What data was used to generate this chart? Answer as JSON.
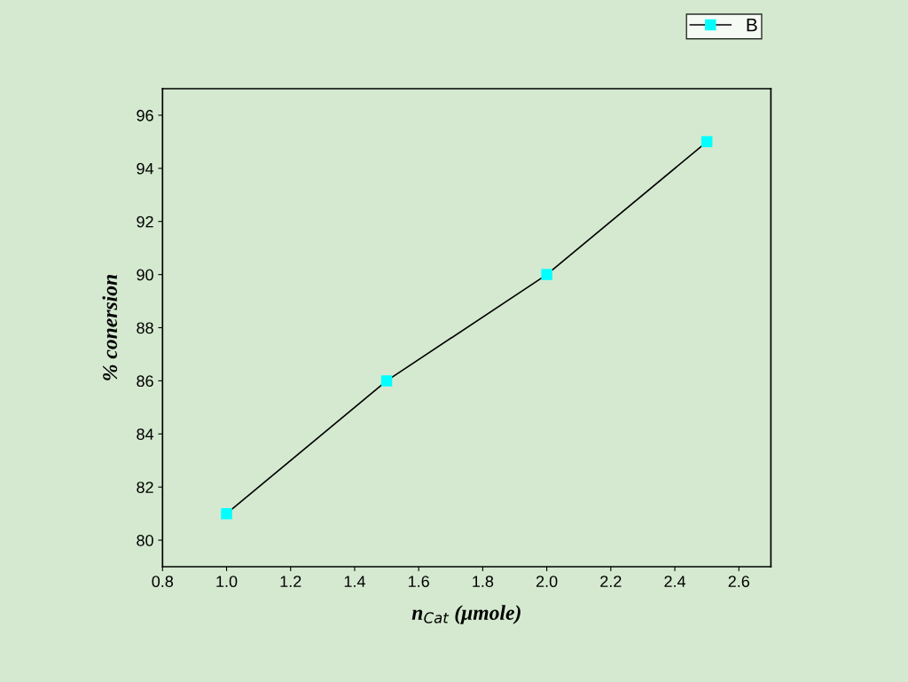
{
  "chart_data": {
    "type": "line",
    "xlabel": "n$_{Cat}$ (μmole)",
    "ylabel": "% conersion",
    "x": [
      1.0,
      1.5,
      2.0,
      2.5
    ],
    "series": [
      {
        "name": "B",
        "color": "#00ffff",
        "values": [
          81,
          86,
          90,
          95
        ]
      }
    ],
    "xlim": [
      0.8,
      2.7
    ],
    "xticks": [
      {
        "value": 0.8,
        "label": "0.8"
      },
      {
        "value": 1.0,
        "label": "1.0"
      },
      {
        "value": 1.2,
        "label": "1.2"
      },
      {
        "value": 1.4,
        "label": "1.4"
      },
      {
        "value": 1.6,
        "label": "1.6"
      },
      {
        "value": 1.8,
        "label": "1.8"
      },
      {
        "value": 2.0,
        "label": "2.0"
      },
      {
        "value": 2.2,
        "label": "2.2"
      },
      {
        "value": 2.4,
        "label": "2.4"
      },
      {
        "value": 2.6,
        "label": "2.6"
      }
    ],
    "ylim": [
      79,
      97
    ],
    "yticks": [
      80,
      82,
      84,
      86,
      88,
      90,
      92,
      94,
      96
    ],
    "marker": "square",
    "line_style": "solid",
    "legend": "top right",
    "grid": false
  }
}
